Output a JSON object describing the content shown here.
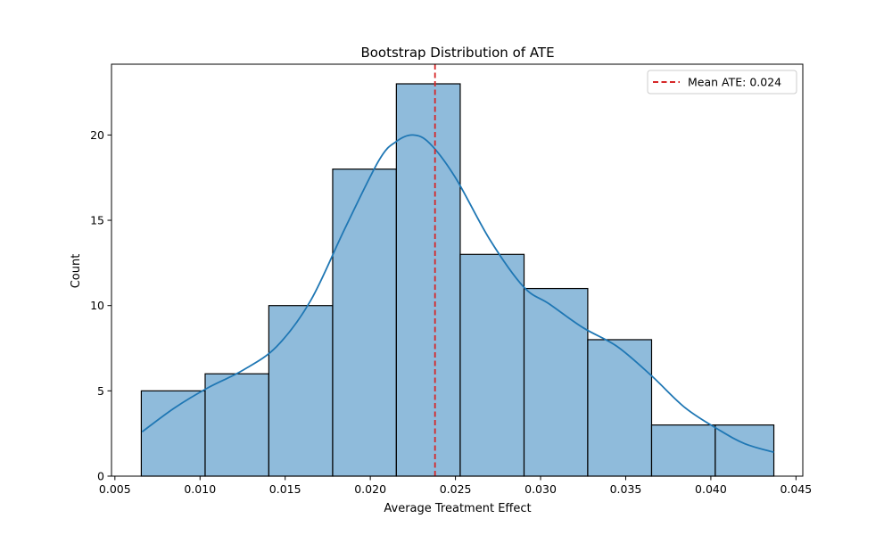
{
  "chart_data": {
    "type": "bar",
    "title": "Bootstrap Distribution of ATE",
    "xlabel": "Average Treatment Effect",
    "ylabel": "Count",
    "xlim": [
      0.0048,
      0.0454
    ],
    "ylim": [
      0,
      24.15
    ],
    "x_ticks": [
      {
        "value": 0.005,
        "label": "0.005"
      },
      {
        "value": 0.01,
        "label": "0.010"
      },
      {
        "value": 0.015,
        "label": "0.015"
      },
      {
        "value": 0.02,
        "label": "0.020"
      },
      {
        "value": 0.025,
        "label": "0.025"
      },
      {
        "value": 0.03,
        "label": "0.030"
      },
      {
        "value": 0.035,
        "label": "0.035"
      },
      {
        "value": 0.04,
        "label": "0.040"
      },
      {
        "value": 0.045,
        "label": "0.045"
      }
    ],
    "y_ticks": [
      {
        "value": 0,
        "label": "0"
      },
      {
        "value": 5,
        "label": "5"
      },
      {
        "value": 10,
        "label": "10"
      },
      {
        "value": 15,
        "label": "15"
      },
      {
        "value": 20,
        "label": "20"
      }
    ],
    "bins": [
      {
        "x0": 0.00655,
        "x1": 0.0103,
        "count": 5
      },
      {
        "x0": 0.0103,
        "x1": 0.01404,
        "count": 6
      },
      {
        "x0": 0.01404,
        "x1": 0.01779,
        "count": 10
      },
      {
        "x0": 0.01779,
        "x1": 0.02153,
        "count": 18
      },
      {
        "x0": 0.02153,
        "x1": 0.02528,
        "count": 23
      },
      {
        "x0": 0.02528,
        "x1": 0.02903,
        "count": 13
      },
      {
        "x0": 0.02903,
        "x1": 0.03277,
        "count": 11
      },
      {
        "x0": 0.03277,
        "x1": 0.03652,
        "count": 8
      },
      {
        "x0": 0.03652,
        "x1": 0.04026,
        "count": 3
      },
      {
        "x0": 0.04026,
        "x1": 0.0437,
        "count": 3
      }
    ],
    "kde": {
      "x": [
        0.0066,
        0.0085,
        0.0105,
        0.0125,
        0.0145,
        0.0165,
        0.0185,
        0.0205,
        0.0215,
        0.0225,
        0.0235,
        0.025,
        0.027,
        0.029,
        0.0305,
        0.0325,
        0.0345,
        0.0365,
        0.0385,
        0.0405,
        0.042,
        0.0437
      ],
      "y": [
        2.6,
        4.0,
        5.2,
        6.2,
        7.6,
        10.3,
        14.5,
        18.5,
        19.6,
        20.0,
        19.5,
        17.5,
        13.9,
        11.1,
        10.1,
        8.7,
        7.6,
        5.9,
        4.0,
        2.7,
        1.9,
        1.4
      ]
    },
    "mean_line": {
      "value": 0.0238,
      "label": "Mean ATE: 0.024"
    },
    "legend_position": "top-right",
    "grid": false,
    "colors": {
      "bar_fill": "#8fbbdb",
      "bar_edge": "#000000",
      "kde": "#1f77b4",
      "mean_line": "#d62728"
    }
  }
}
